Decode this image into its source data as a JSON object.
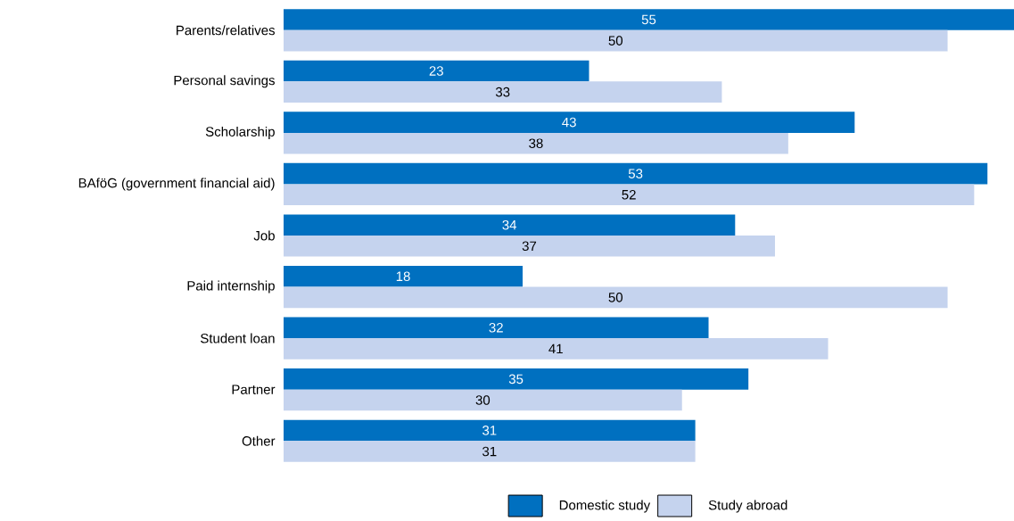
{
  "chart_data": {
    "type": "bar",
    "orientation": "horizontal",
    "data_labels": true,
    "legend": "bottom",
    "categories": [
      "Parents/relatives",
      "Personal savings",
      "Scholarship",
      "BAföG (government financial aid)",
      "Job",
      "Paid internship",
      "Student loan",
      "Partner",
      "Other"
    ],
    "series": [
      {
        "name": "Domestic study",
        "color": "#0070c0",
        "values": [
          55,
          23,
          43,
          53,
          34,
          18,
          32,
          35,
          31
        ]
      },
      {
        "name": "Study abroad",
        "color": "#c5d3ee",
        "values": [
          50,
          33,
          38,
          52,
          37,
          50,
          41,
          30,
          31
        ]
      }
    ]
  }
}
